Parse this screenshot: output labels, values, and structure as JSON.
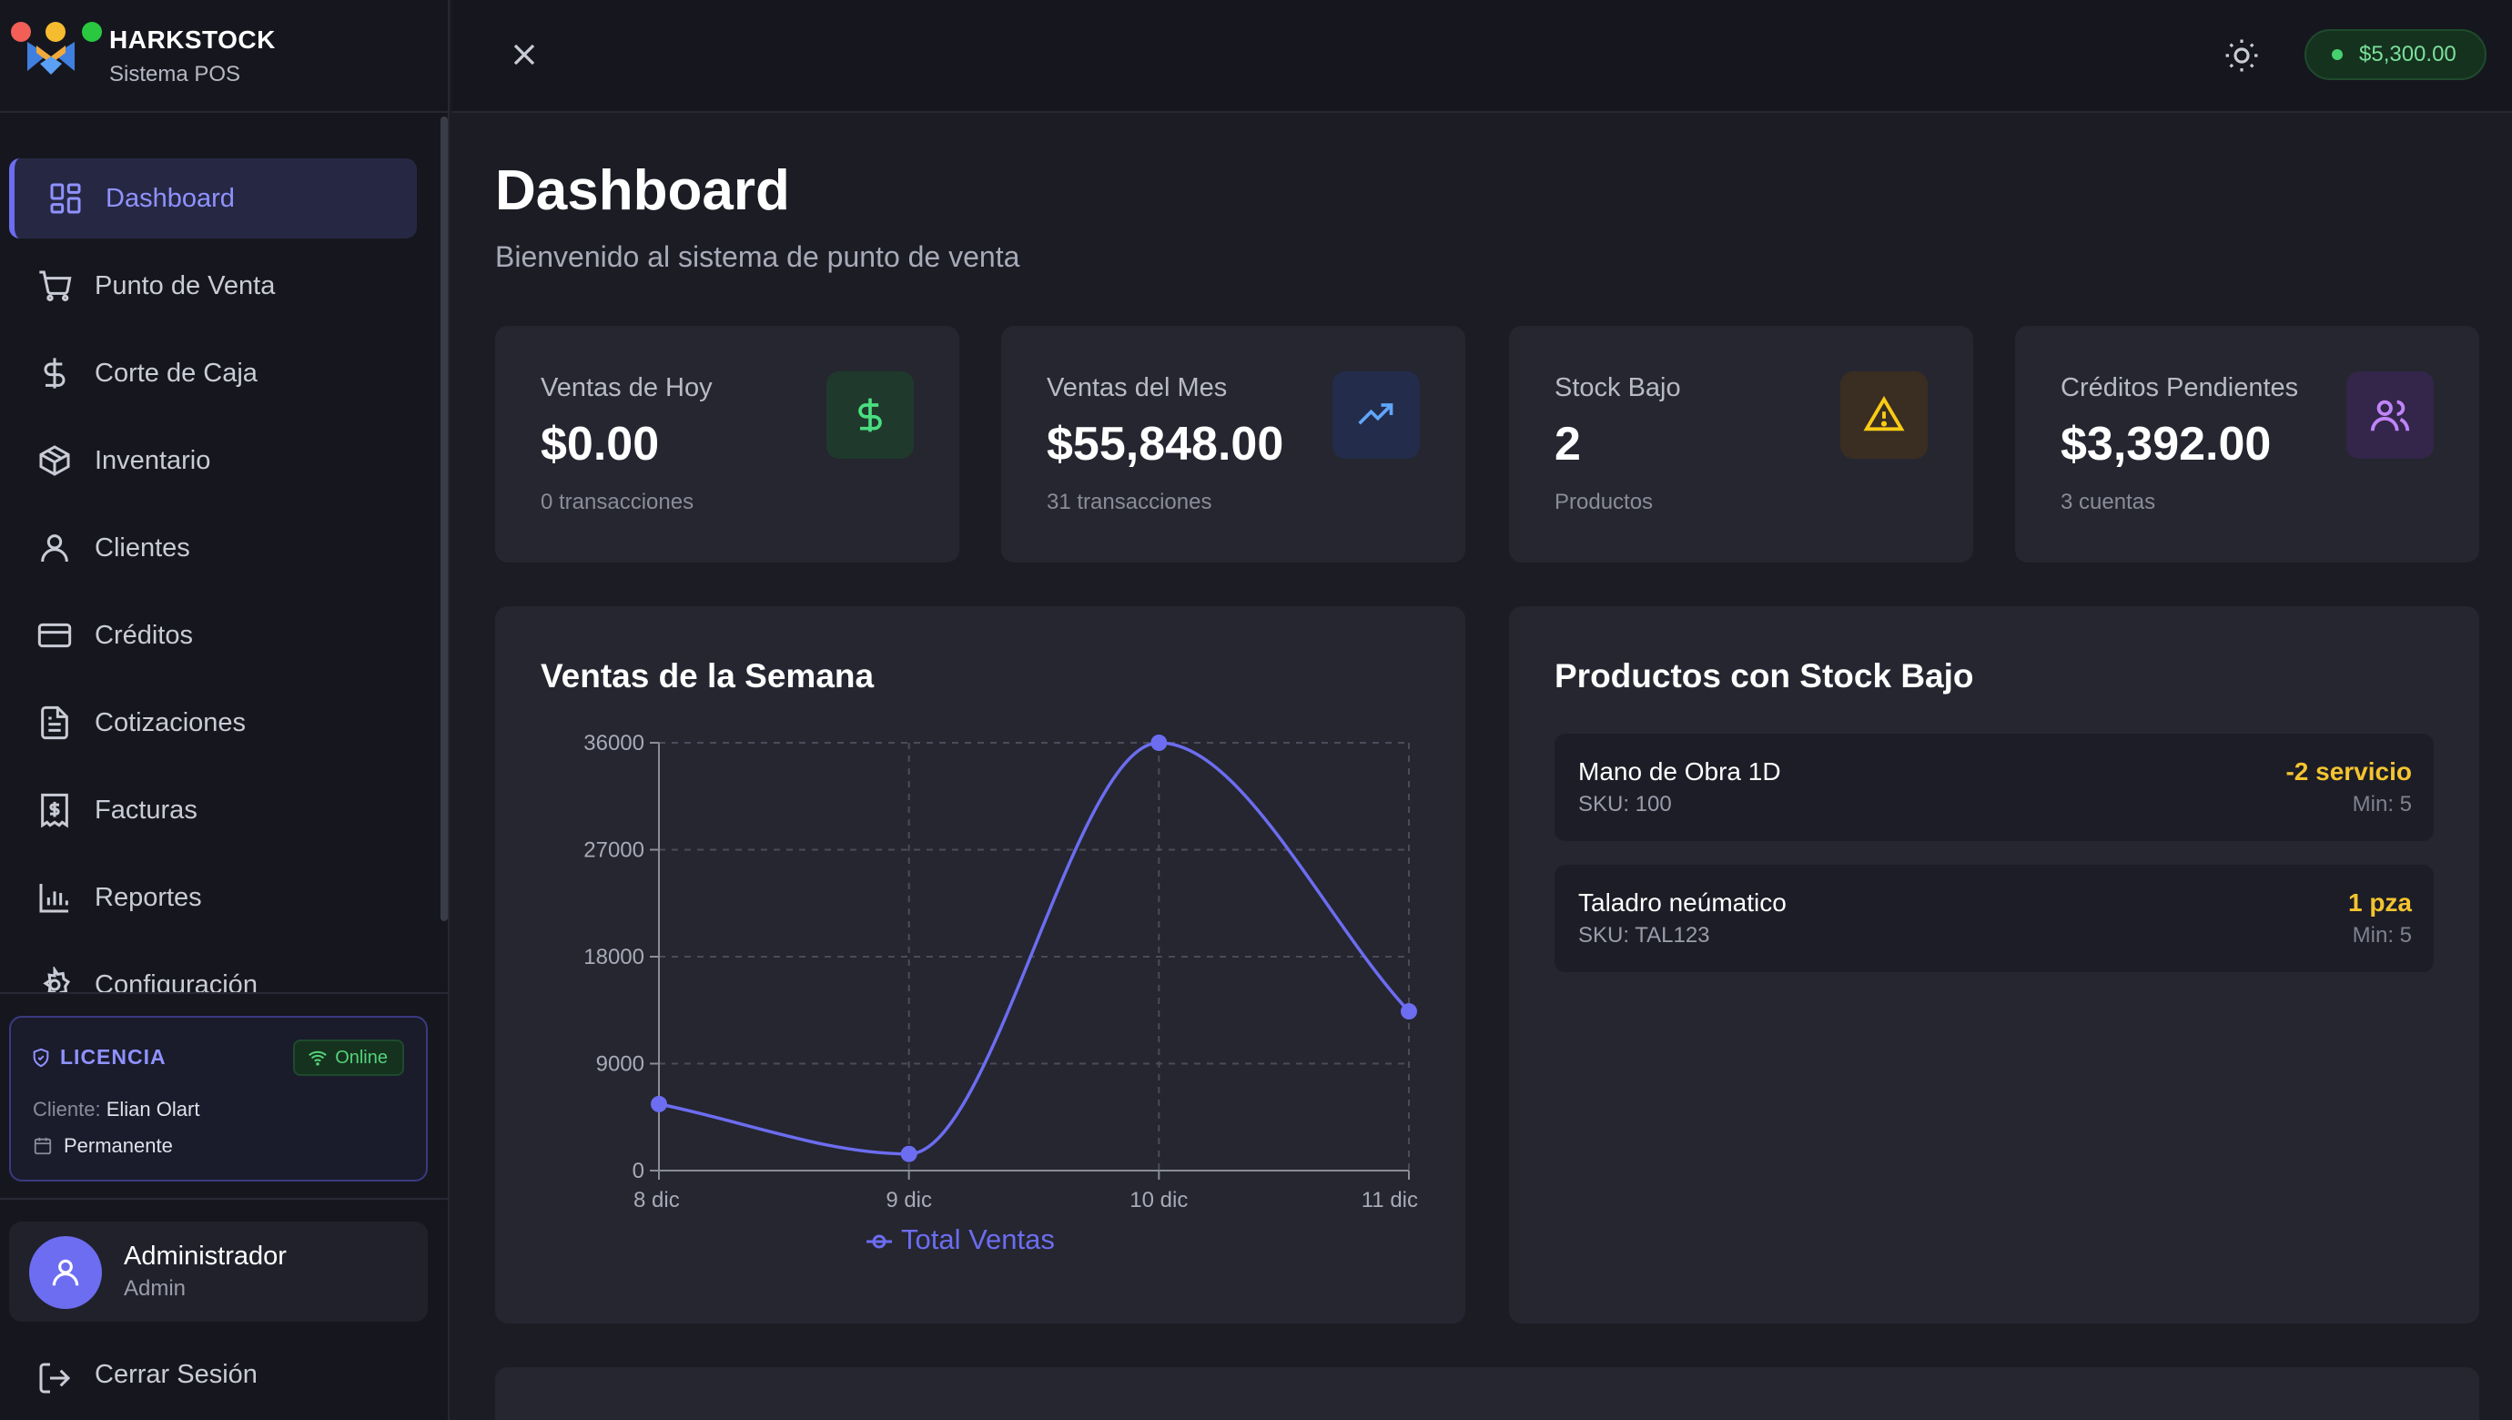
{
  "brand": {
    "title": "HARKSTOCK",
    "subtitle": "Sistema POS"
  },
  "nav": {
    "items": [
      {
        "label": "Dashboard",
        "icon": "dashboard-grid-icon",
        "active": true
      },
      {
        "label": "Punto de Venta",
        "icon": "cart-icon"
      },
      {
        "label": "Corte de Caja",
        "icon": "dollar-icon"
      },
      {
        "label": "Inventario",
        "icon": "package-icon"
      },
      {
        "label": "Clientes",
        "icon": "user-icon"
      },
      {
        "label": "Créditos",
        "icon": "credit-card-icon"
      },
      {
        "label": "Cotizaciones",
        "icon": "document-icon"
      },
      {
        "label": "Facturas",
        "icon": "receipt-icon"
      },
      {
        "label": "Reportes",
        "icon": "bar-chart-icon"
      },
      {
        "label": "Configuración",
        "icon": "gear-icon"
      }
    ]
  },
  "license": {
    "title": "LICENCIA",
    "status": "Online",
    "client_label": "Cliente:",
    "client_name": "Elian Olart",
    "type": "Permanente"
  },
  "user": {
    "name": "Administrador",
    "role": "Admin"
  },
  "logout": {
    "label": "Cerrar Sesión"
  },
  "topbar": {
    "balance": "$5,300.00"
  },
  "page": {
    "title": "Dashboard",
    "subtitle": "Bienvenido al sistema de punto de venta"
  },
  "cards": [
    {
      "title": "Ventas de Hoy",
      "value": "$0.00",
      "sub": "0 transacciones",
      "icon": "dollar-icon",
      "color": "#4ade80"
    },
    {
      "title": "Ventas del Mes",
      "value": "$55,848.00",
      "sub": "31 transacciones",
      "icon": "trending-up-icon",
      "color": "#60a5fa"
    },
    {
      "title": "Stock Bajo",
      "value": "2",
      "sub": "Productos",
      "icon": "warning-icon",
      "color": "#facc15"
    },
    {
      "title": "Créditos Pendientes",
      "value": "$3,392.00",
      "sub": "3 cuentas",
      "icon": "users-icon",
      "color": "#c084fc"
    }
  ],
  "weekly": {
    "title": "Ventas de la Semana"
  },
  "chart_data": {
    "type": "line",
    "categories": [
      "8 dic",
      "9 dic",
      "10 dic",
      "11 dic"
    ],
    "series": [
      {
        "name": "Total Ventas",
        "values": [
          5600,
          1400,
          36000,
          13400
        ]
      }
    ],
    "ylim": [
      0,
      36000
    ],
    "yticks": [
      "0",
      "9000",
      "18000",
      "27000",
      "36000"
    ],
    "grid": true,
    "legend": "bottom",
    "color": "#6c6df0"
  },
  "low_stock": {
    "title": "Productos con Stock Bajo",
    "items": [
      {
        "name": "Mano de Obra 1D",
        "sku": "SKU: 100",
        "qty": "-2 servicio",
        "min": "Min: 5"
      },
      {
        "name": "Taladro neúmatico",
        "sku": "SKU: TAL123",
        "qty": "1 pza",
        "min": "Min: 5"
      }
    ]
  }
}
